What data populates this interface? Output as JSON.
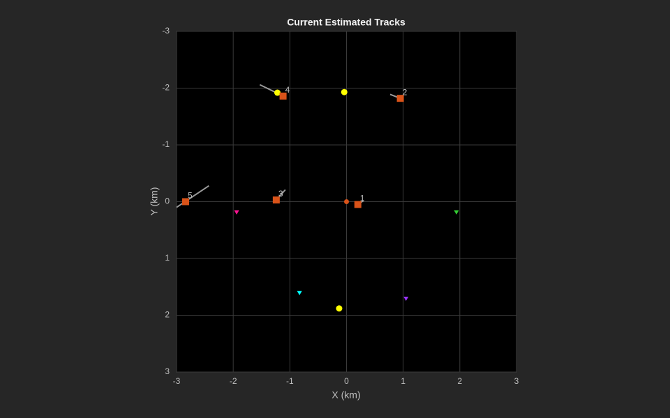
{
  "chart_data": {
    "type": "scatter",
    "title": "Current Estimated Tracks",
    "xlabel": "X (km)",
    "ylabel": "Y (km)",
    "xlim": [
      -3,
      3
    ],
    "ylim": [
      -3,
      3
    ],
    "y_reversed": true,
    "xticks": [
      -3,
      -2,
      -1,
      0,
      1,
      2,
      3
    ],
    "yticks": [
      -3,
      -2,
      -1,
      0,
      1,
      2,
      3
    ],
    "grid": true,
    "series": [
      {
        "kind": "line",
        "color": "#9a9a9a",
        "x": [
          -3.0,
          -2.43
        ],
        "values": [
          0.1,
          -0.28
        ]
      },
      {
        "kind": "line",
        "color": "#9a9a9a",
        "x": [
          -1.53,
          -1.22
        ],
        "values": [
          -2.06,
          -1.91
        ]
      },
      {
        "kind": "line",
        "color": "#9a9a9a",
        "x": [
          0.77,
          0.95
        ],
        "values": [
          -1.89,
          -1.82
        ]
      },
      {
        "kind": "line",
        "color": "#9a9a9a",
        "x": [
          -1.24,
          -1.08
        ],
        "values": [
          -0.03,
          -0.21
        ]
      },
      {
        "kind": "line",
        "color": "#9a9a9a",
        "x": [
          0.2,
          0.3
        ],
        "values": [
          0.05,
          -0.02
        ]
      },
      {
        "kind": "marker",
        "marker": "circle",
        "color": "#ffff00",
        "x": [
          -1.22,
          -0.04,
          -0.13
        ],
        "values": [
          -1.92,
          -1.93,
          1.88
        ]
      },
      {
        "kind": "marker",
        "marker": "dot",
        "color": "#d95319",
        "x": [
          0.0
        ],
        "values": [
          0.0
        ]
      },
      {
        "kind": "marker",
        "marker": "square",
        "color": "#d95319",
        "x": [
          0.2,
          0.95,
          -1.24,
          -1.12,
          -2.84
        ],
        "values": [
          0.05,
          -1.82,
          -0.03,
          -1.86,
          0.0
        ],
        "labels": [
          "1",
          "2",
          "3",
          "4",
          "5"
        ]
      },
      {
        "kind": "marker",
        "marker": "triangle",
        "color": "#ff1493",
        "x": [
          -1.94
        ],
        "values": [
          0.19
        ]
      },
      {
        "kind": "marker",
        "marker": "triangle",
        "color": "#33cc33",
        "x": [
          1.94
        ],
        "values": [
          0.19
        ]
      },
      {
        "kind": "marker",
        "marker": "triangle",
        "color": "#00ffff",
        "x": [
          -0.83
        ],
        "values": [
          1.61
        ]
      },
      {
        "kind": "marker",
        "marker": "triangle",
        "color": "#9933ff",
        "x": [
          1.05
        ],
        "values": [
          1.71
        ]
      }
    ]
  }
}
